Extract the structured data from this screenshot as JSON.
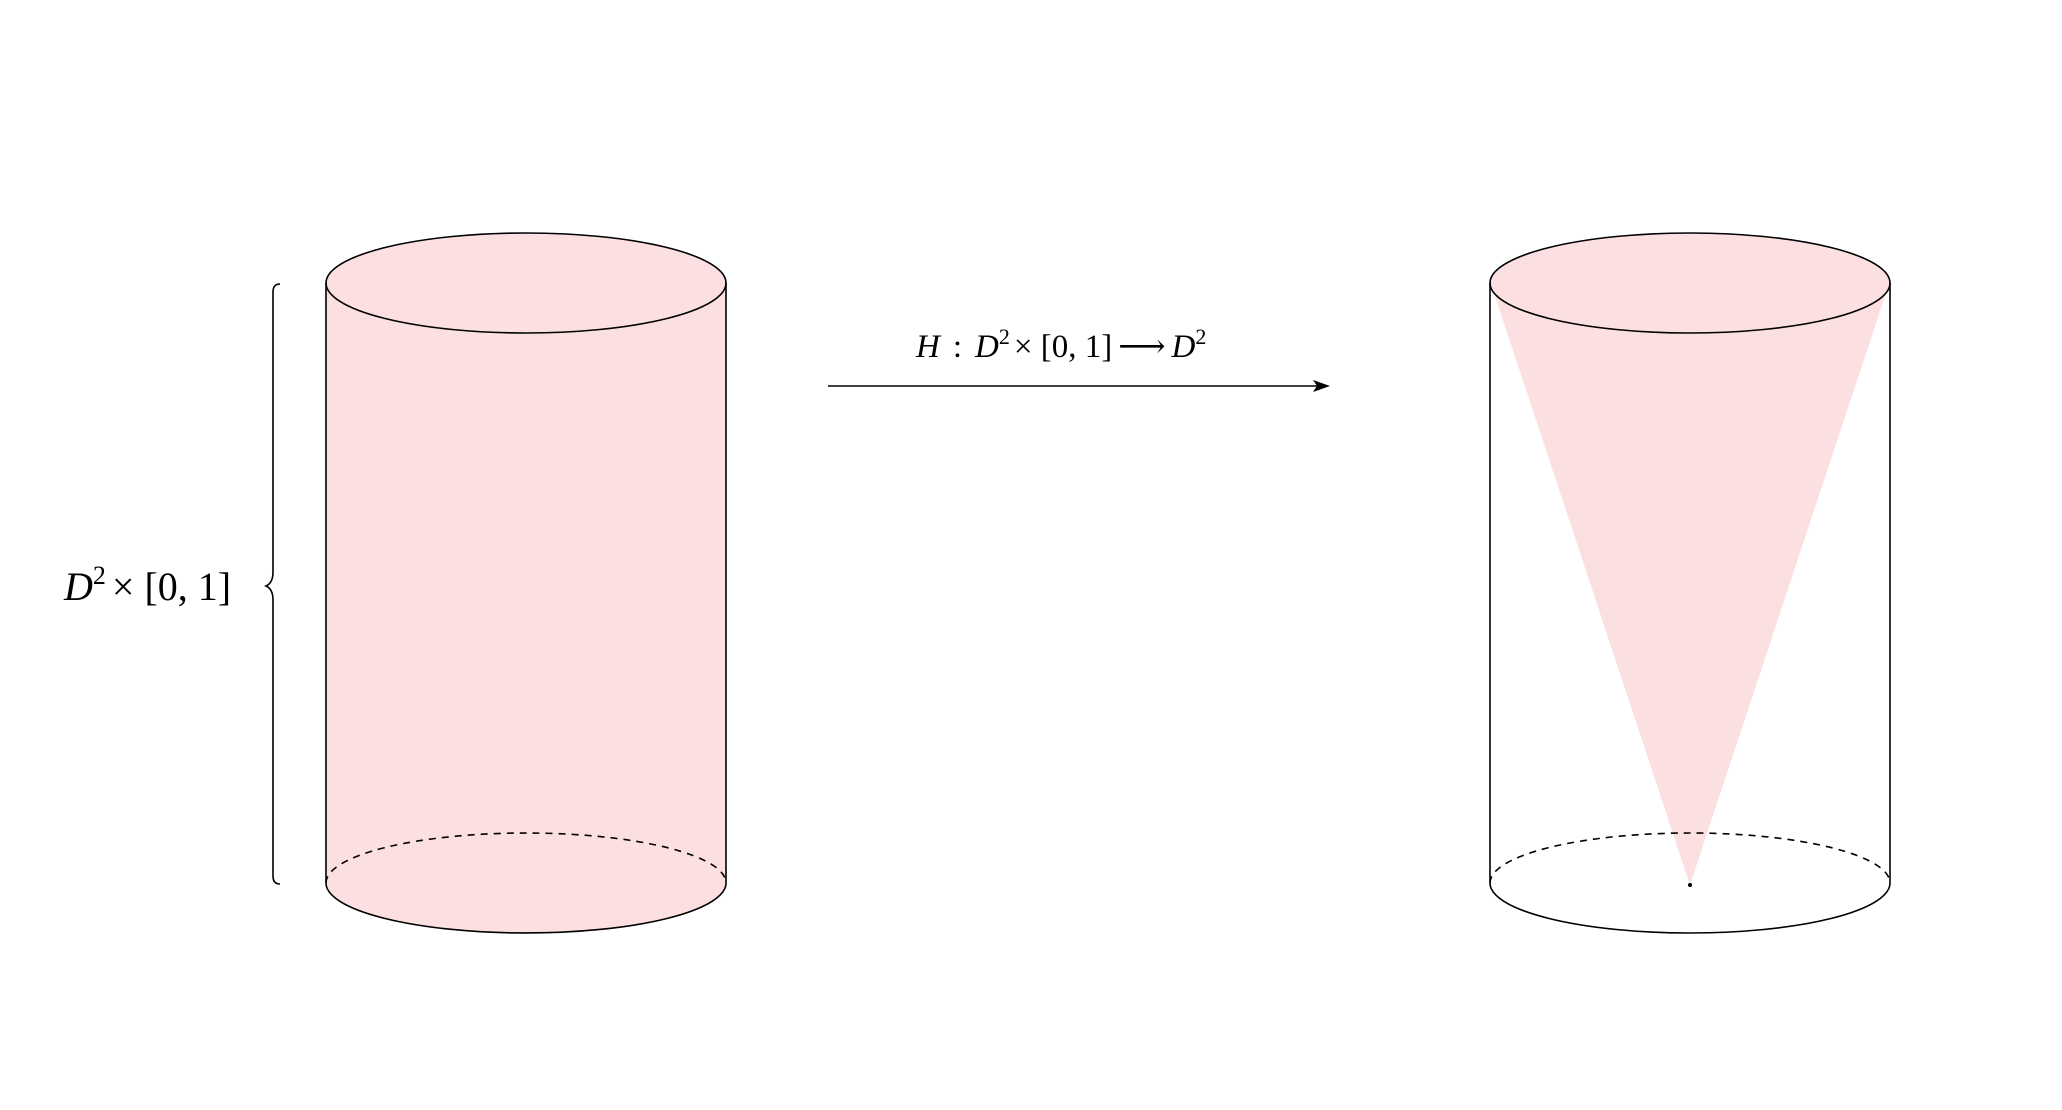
{
  "colors": {
    "fill": "#fcdfe1",
    "stroke": "#000000",
    "background": "#ffffff"
  },
  "left_figure": {
    "label": {
      "base": "D",
      "exponent": "2",
      "rest": "× [0, 1]"
    }
  },
  "arrow": {
    "label": {
      "map_name": "H",
      "colon": ":",
      "domain_base": "D",
      "domain_exponent": "2",
      "domain_rest": "× [0, 1]",
      "arrow_symbol": "⟶",
      "codomain_base": "D",
      "codomain_exponent": "2"
    }
  }
}
